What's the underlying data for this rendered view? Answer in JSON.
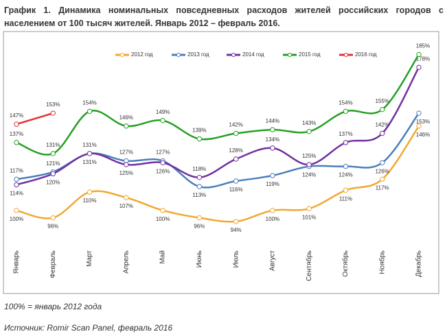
{
  "chart_data": {
    "type": "line",
    "title": "График 1. Динамика номинальных повседневных расходов жителей российских городов с населением от 100 тысяч жителей. Январь 2012 – февраль 2016.",
    "categories": [
      "Январь",
      "Февраль",
      "Март",
      "Апрель",
      "Май",
      "Июнь",
      "Июль",
      "Август",
      "Сентябрь",
      "Октябрь",
      "Ноябрь",
      "Декабрь"
    ],
    "ylim": [
      82,
      196
    ],
    "series": [
      {
        "name": "2012 год",
        "color": "#f0a830",
        "values": [
          100,
          96,
          110,
          107,
          100,
          96,
          94,
          100,
          101,
          111,
          117,
          146
        ],
        "value_labels": [
          "100%",
          "96%",
          "110%",
          "107%",
          "100%",
          "96%",
          "94%",
          "100%",
          "101%",
          "111%",
          "117%",
          "146%"
        ]
      },
      {
        "name": "2013 год",
        "color": "#4a7ebb",
        "values": [
          117,
          121,
          131,
          127,
          127,
          113,
          116,
          119,
          124,
          124,
          126,
          153
        ],
        "value_labels": [
          "117%",
          "121%",
          "131%",
          "127%",
          "127%",
          "113%",
          "116%",
          "119%",
          "124%",
          "124%",
          "126%",
          "153%"
        ]
      },
      {
        "name": "2014 год",
        "color": "#7030a0",
        "values": [
          114,
          120,
          131,
          125,
          126,
          118,
          128,
          134,
          125,
          137,
          142,
          178
        ],
        "value_labels": [
          "114%",
          "120%",
          "131%",
          "125%",
          "126%",
          "118%",
          "128%",
          "134%",
          "125%",
          "137%",
          "142%",
          "178%"
        ]
      },
      {
        "name": "2015 год",
        "color": "#22a022",
        "values": [
          137,
          131,
          154,
          146,
          149,
          139,
          142,
          144,
          143,
          154,
          155,
          185
        ],
        "value_labels": [
          "137%",
          "131%",
          "154%",
          "146%",
          "149%",
          "139%",
          "142%",
          "144%",
          "143%",
          "154%",
          "155%",
          "185%"
        ]
      },
      {
        "name": "2016 год",
        "color": "#e03030",
        "values": [
          147,
          153,
          null,
          null,
          null,
          null,
          null,
          null,
          null,
          null,
          null,
          null
        ],
        "value_labels": [
          "147%",
          "153%",
          null,
          null,
          null,
          null,
          null,
          null,
          null,
          null,
          null,
          null
        ]
      }
    ],
    "notes": [
      "100% = январь 2012 года",
      "Источник: Romir Scan Panel, февраль 2016"
    ]
  }
}
